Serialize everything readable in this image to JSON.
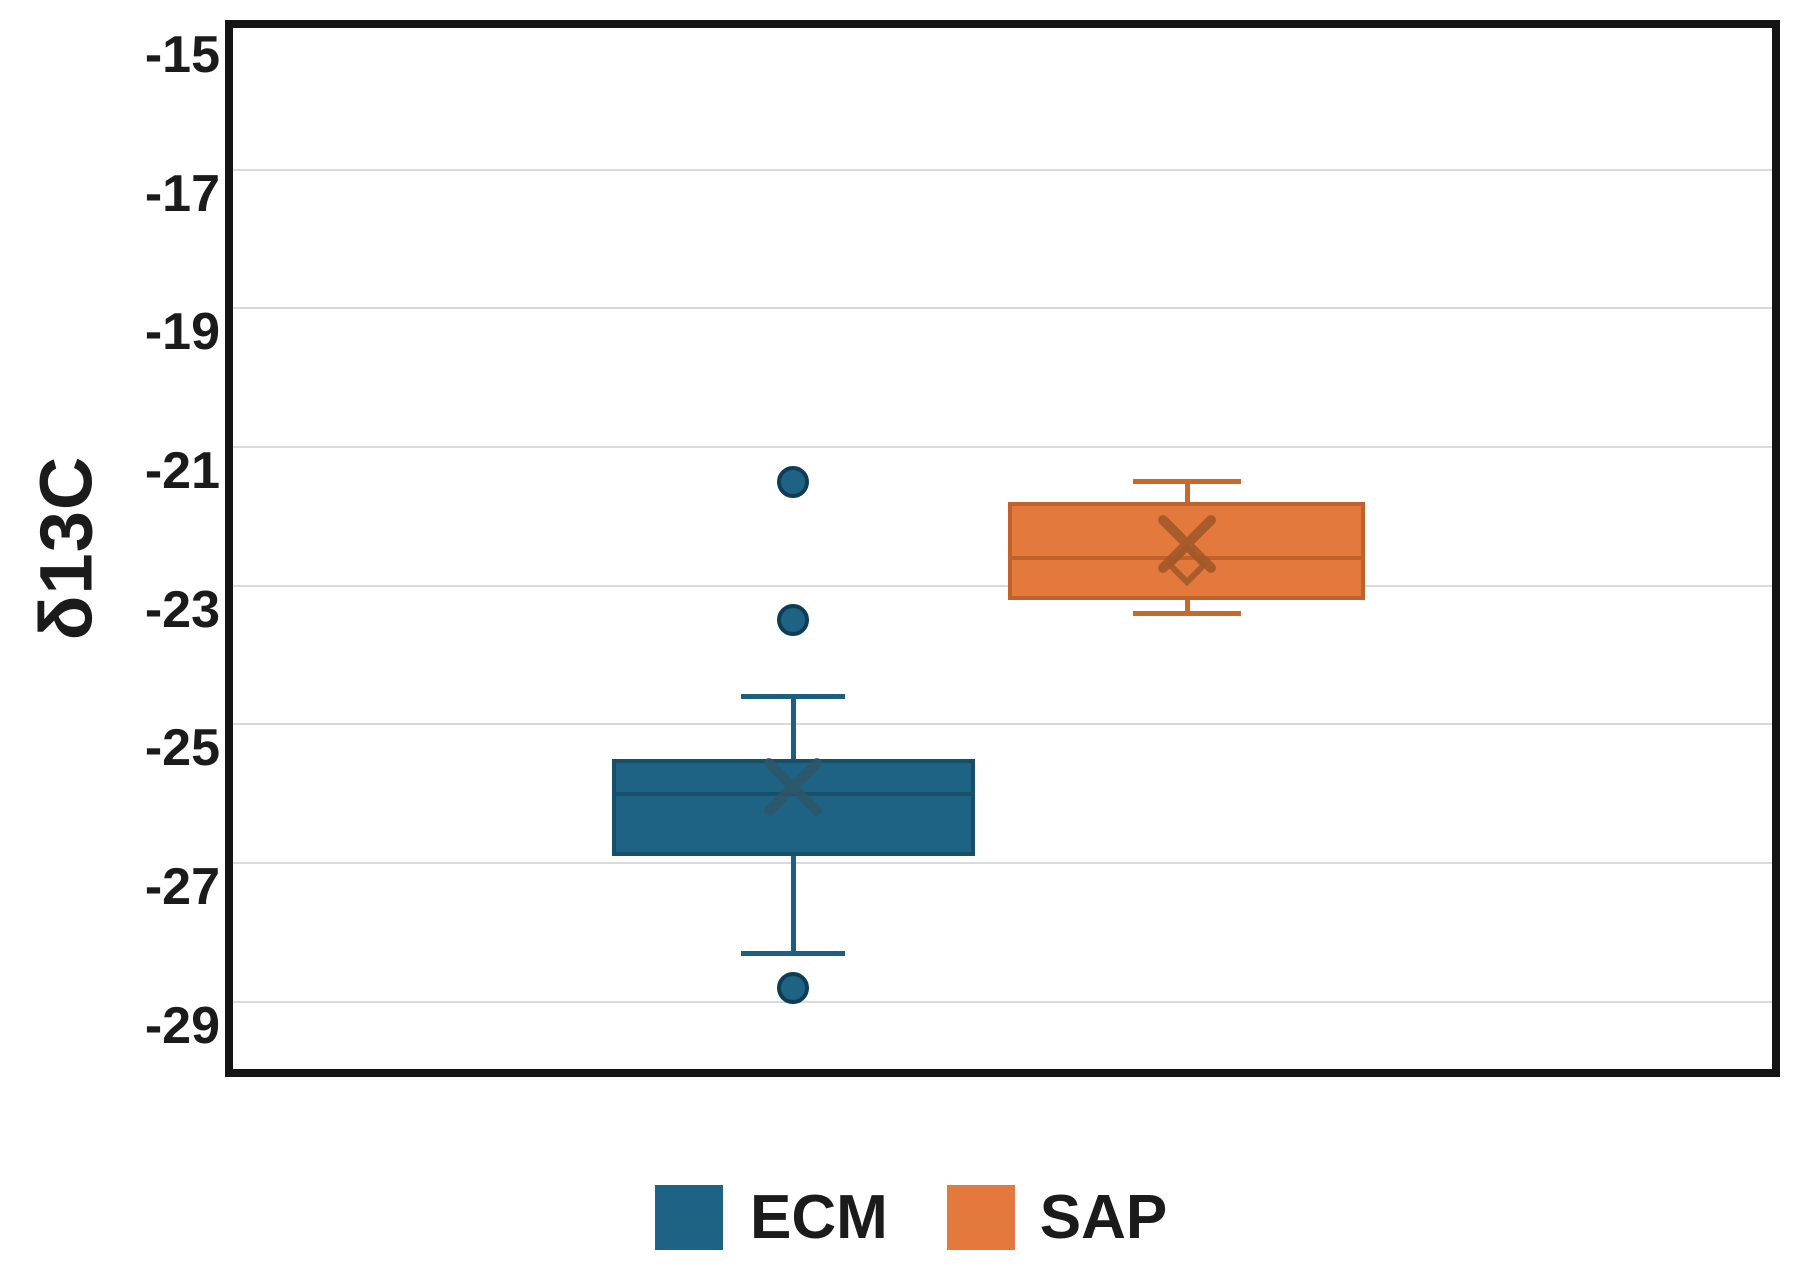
{
  "figure": {
    "background": "#ffffff",
    "frame_color": "#141414",
    "gridline_color": "#dadada"
  },
  "chart_data": {
    "type": "box",
    "title": "",
    "xlabel": "",
    "ylabel": "δ13C",
    "ylim": [
      -30,
      -15
    ],
    "grid": true,
    "legend_position": "bottom",
    "categories": [
      "ECM",
      "SAP"
    ],
    "yticks": [
      -15,
      -17,
      -19,
      -21,
      -23,
      -25,
      -27,
      -29
    ],
    "ytick_labels": [
      "-15",
      "-17",
      "-19",
      "-21",
      "-23",
      "-25",
      "-27",
      "-29"
    ],
    "series": [
      {
        "name": "ECM",
        "fill_color": "#1e6384",
        "edge_color": "#164f69",
        "median_color": "#17506b",
        "marker_color": "#2e5769",
        "whisker_color": "#1d5f80",
        "whisker_low": -28.3,
        "q1": -26.9,
        "median": -26.0,
        "mean": -25.9,
        "q3": -25.5,
        "whisker_high": -24.6,
        "outliers": [
          -21.5,
          -23.5,
          -28.8
        ],
        "open_diamond": null
      },
      {
        "name": "SAP",
        "fill_color": "#e3793d",
        "edge_color": "#c2622b",
        "median_color": "#c0612a",
        "marker_color": "#a05826",
        "whisker_color": "#c96929",
        "whisker_low": -23.4,
        "q1": -23.2,
        "median": -22.6,
        "mean": -22.4,
        "q3": -21.8,
        "whisker_high": -21.5,
        "outliers": [],
        "open_diamond": -22.7
      }
    ]
  },
  "legend": {
    "items": [
      {
        "label": "ECM",
        "color": "#1e6384"
      },
      {
        "label": "SAP",
        "color": "#e3793d"
      }
    ]
  }
}
